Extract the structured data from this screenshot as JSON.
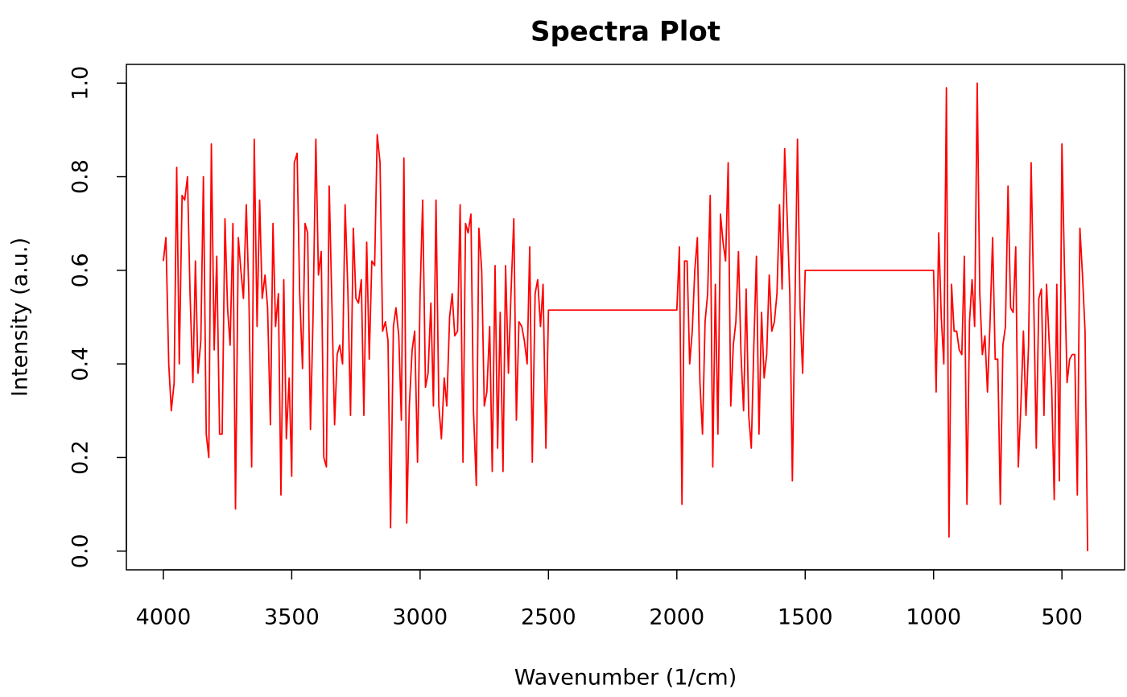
{
  "chart_data": {
    "type": "line",
    "title": "Spectra Plot",
    "x_label": "Wavenumber (1/cm)",
    "y_label": "Intensity (a.u.)",
    "color": "#ff0000",
    "xlim": [
      4144,
      256
    ],
    "ylim": [
      -0.04,
      1.04
    ],
    "xticks": [
      4000,
      3500,
      3000,
      2500,
      2000,
      1500,
      1000,
      500
    ],
    "yticks": [
      {
        "value": 0,
        "label": "0.0"
      },
      0.2,
      0.4,
      0.6,
      0.8,
      {
        "value": 1,
        "label": "1.0"
      }
    ],
    "grid": false,
    "x": [
      4000,
      3990,
      3979,
      3969,
      3958,
      3948,
      3938,
      3927,
      3917,
      3906,
      3896,
      3885,
      3875,
      3865,
      3854,
      3844,
      3833,
      3823,
      3813,
      3802,
      3792,
      3781,
      3771,
      3760,
      3750,
      3740,
      3729,
      3719,
      3708,
      3698,
      3688,
      3677,
      3667,
      3656,
      3646,
      3635,
      3625,
      3615,
      3604,
      3594,
      3583,
      3573,
      3563,
      3552,
      3542,
      3531,
      3521,
      3510,
      3500,
      3490,
      3479,
      3469,
      3458,
      3448,
      3438,
      3427,
      3417,
      3406,
      3396,
      3385,
      3375,
      3365,
      3354,
      3344,
      3333,
      3323,
      3313,
      3302,
      3292,
      3281,
      3271,
      3260,
      3250,
      3240,
      3229,
      3219,
      3208,
      3198,
      3188,
      3177,
      3167,
      3156,
      3146,
      3135,
      3125,
      3115,
      3104,
      3094,
      3083,
      3073,
      3063,
      3052,
      3042,
      3031,
      3021,
      3010,
      3000,
      2990,
      2979,
      2969,
      2958,
      2948,
      2938,
      2927,
      2917,
      2906,
      2896,
      2885,
      2875,
      2865,
      2854,
      2844,
      2833,
      2823,
      2813,
      2802,
      2792,
      2781,
      2771,
      2760,
      2750,
      2740,
      2729,
      2719,
      2708,
      2698,
      2688,
      2677,
      2667,
      2656,
      2646,
      2635,
      2625,
      2615,
      2604,
      2594,
      2583,
      2573,
      2563,
      2552,
      2542,
      2531,
      2521,
      2510,
      2500,
      2000,
      1990,
      1980,
      1970,
      1960,
      1950,
      1940,
      1930,
      1920,
      1910,
      1900,
      1890,
      1880,
      1870,
      1860,
      1850,
      1840,
      1830,
      1820,
      1810,
      1800,
      1790,
      1780,
      1770,
      1760,
      1750,
      1740,
      1730,
      1720,
      1710,
      1700,
      1690,
      1680,
      1670,
      1660,
      1650,
      1640,
      1630,
      1620,
      1610,
      1600,
      1590,
      1580,
      1570,
      1560,
      1550,
      1540,
      1530,
      1520,
      1510,
      1500,
      1000,
      990,
      980,
      970,
      960,
      950,
      940,
      930,
      920,
      910,
      900,
      890,
      880,
      870,
      860,
      850,
      840,
      830,
      820,
      810,
      800,
      790,
      780,
      770,
      760,
      750,
      740,
      730,
      720,
      710,
      700,
      690,
      680,
      670,
      660,
      650,
      640,
      630,
      620,
      610,
      600,
      590,
      580,
      570,
      560,
      550,
      540,
      530,
      520,
      510,
      500,
      490,
      480,
      470,
      460,
      450,
      440,
      430,
      420,
      410,
      400
    ],
    "values": [
      0.62,
      0.67,
      0.4,
      0.3,
      0.36,
      0.82,
      0.4,
      0.76,
      0.75,
      0.8,
      0.55,
      0.36,
      0.62,
      0.38,
      0.45,
      0.8,
      0.25,
      0.2,
      0.87,
      0.43,
      0.63,
      0.25,
      0.25,
      0.71,
      0.52,
      0.44,
      0.7,
      0.09,
      0.67,
      0.6,
      0.54,
      0.74,
      0.55,
      0.18,
      0.88,
      0.48,
      0.75,
      0.54,
      0.59,
      0.52,
      0.27,
      0.7,
      0.48,
      0.55,
      0.12,
      0.58,
      0.24,
      0.37,
      0.16,
      0.83,
      0.85,
      0.55,
      0.39,
      0.7,
      0.68,
      0.26,
      0.5,
      0.88,
      0.59,
      0.64,
      0.2,
      0.18,
      0.78,
      0.54,
      0.27,
      0.42,
      0.44,
      0.4,
      0.74,
      0.55,
      0.29,
      0.69,
      0.54,
      0.53,
      0.58,
      0.29,
      0.66,
      0.41,
      0.62,
      0.61,
      0.89,
      0.83,
      0.47,
      0.49,
      0.45,
      0.05,
      0.48,
      0.52,
      0.46,
      0.28,
      0.84,
      0.06,
      0.31,
      0.43,
      0.47,
      0.19,
      0.55,
      0.75,
      0.35,
      0.38,
      0.53,
      0.31,
      0.75,
      0.31,
      0.24,
      0.37,
      0.31,
      0.5,
      0.55,
      0.46,
      0.47,
      0.74,
      0.19,
      0.7,
      0.68,
      0.72,
      0.3,
      0.14,
      0.69,
      0.6,
      0.31,
      0.34,
      0.48,
      0.17,
      0.61,
      0.22,
      0.51,
      0.17,
      0.61,
      0.38,
      0.55,
      0.71,
      0.28,
      0.49,
      0.48,
      0.45,
      0.4,
      0.65,
      0.19,
      0.55,
      0.58,
      0.48,
      0.57,
      0.22,
      0.515,
      0.515,
      0.65,
      0.1,
      0.62,
      0.62,
      0.4,
      0.47,
      0.6,
      0.67,
      0.36,
      0.25,
      0.49,
      0.55,
      0.76,
      0.18,
      0.57,
      0.25,
      0.72,
      0.66,
      0.62,
      0.83,
      0.31,
      0.44,
      0.49,
      0.64,
      0.42,
      0.3,
      0.56,
      0.29,
      0.22,
      0.44,
      0.63,
      0.25,
      0.51,
      0.37,
      0.42,
      0.59,
      0.47,
      0.49,
      0.55,
      0.74,
      0.56,
      0.86,
      0.71,
      0.55,
      0.15,
      0.52,
      0.88,
      0.52,
      0.38,
      0.6,
      0.6,
      0.34,
      0.68,
      0.5,
      0.4,
      0.99,
      0.03,
      0.57,
      0.47,
      0.47,
      0.43,
      0.42,
      0.63,
      0.1,
      0.49,
      0.58,
      0.48,
      1.0,
      0.55,
      0.42,
      0.46,
      0.34,
      0.49,
      0.67,
      0.41,
      0.41,
      0.1,
      0.44,
      0.48,
      0.78,
      0.52,
      0.51,
      0.65,
      0.18,
      0.31,
      0.47,
      0.29,
      0.44,
      0.83,
      0.54,
      0.22,
      0.54,
      0.56,
      0.29,
      0.57,
      0.45,
      0.35,
      0.11,
      0.57,
      0.15,
      0.87,
      0.6,
      0.36,
      0.41,
      0.42,
      0.42,
      0.12,
      0.69,
      0.59,
      0.47,
      0.0
    ]
  }
}
